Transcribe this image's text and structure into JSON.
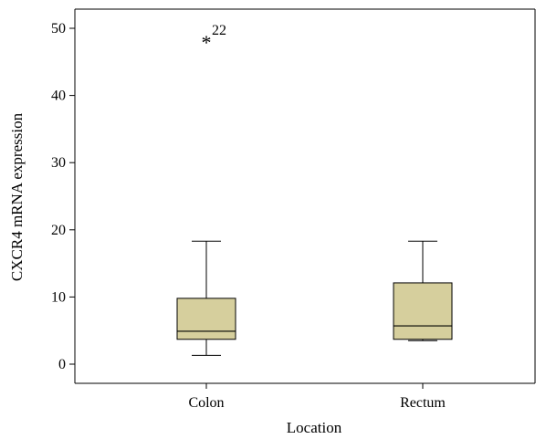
{
  "chart_data": {
    "type": "box",
    "xlabel": "Location",
    "ylabel": "CXCR4 mRNA expression",
    "ylim": [
      -3,
      53
    ],
    "yticks": [
      0,
      10,
      20,
      30,
      40,
      50
    ],
    "categories": [
      "Colon",
      "Rectum"
    ],
    "boxes": [
      {
        "category": "Colon",
        "whisker_low": 1.3,
        "q1": 3.7,
        "median": 4.9,
        "q3": 9.8,
        "whisker_high": 18.3
      },
      {
        "category": "Rectum",
        "whisker_low": 3.5,
        "q1": 3.7,
        "median": 5.7,
        "q3": 12.1,
        "whisker_high": 18.3
      }
    ],
    "outliers": [
      {
        "category": "Colon",
        "value": 48.5,
        "marker": "*",
        "label": "22"
      }
    ],
    "box_fill": "#d6cf9d",
    "box_stroke": "#000000"
  }
}
